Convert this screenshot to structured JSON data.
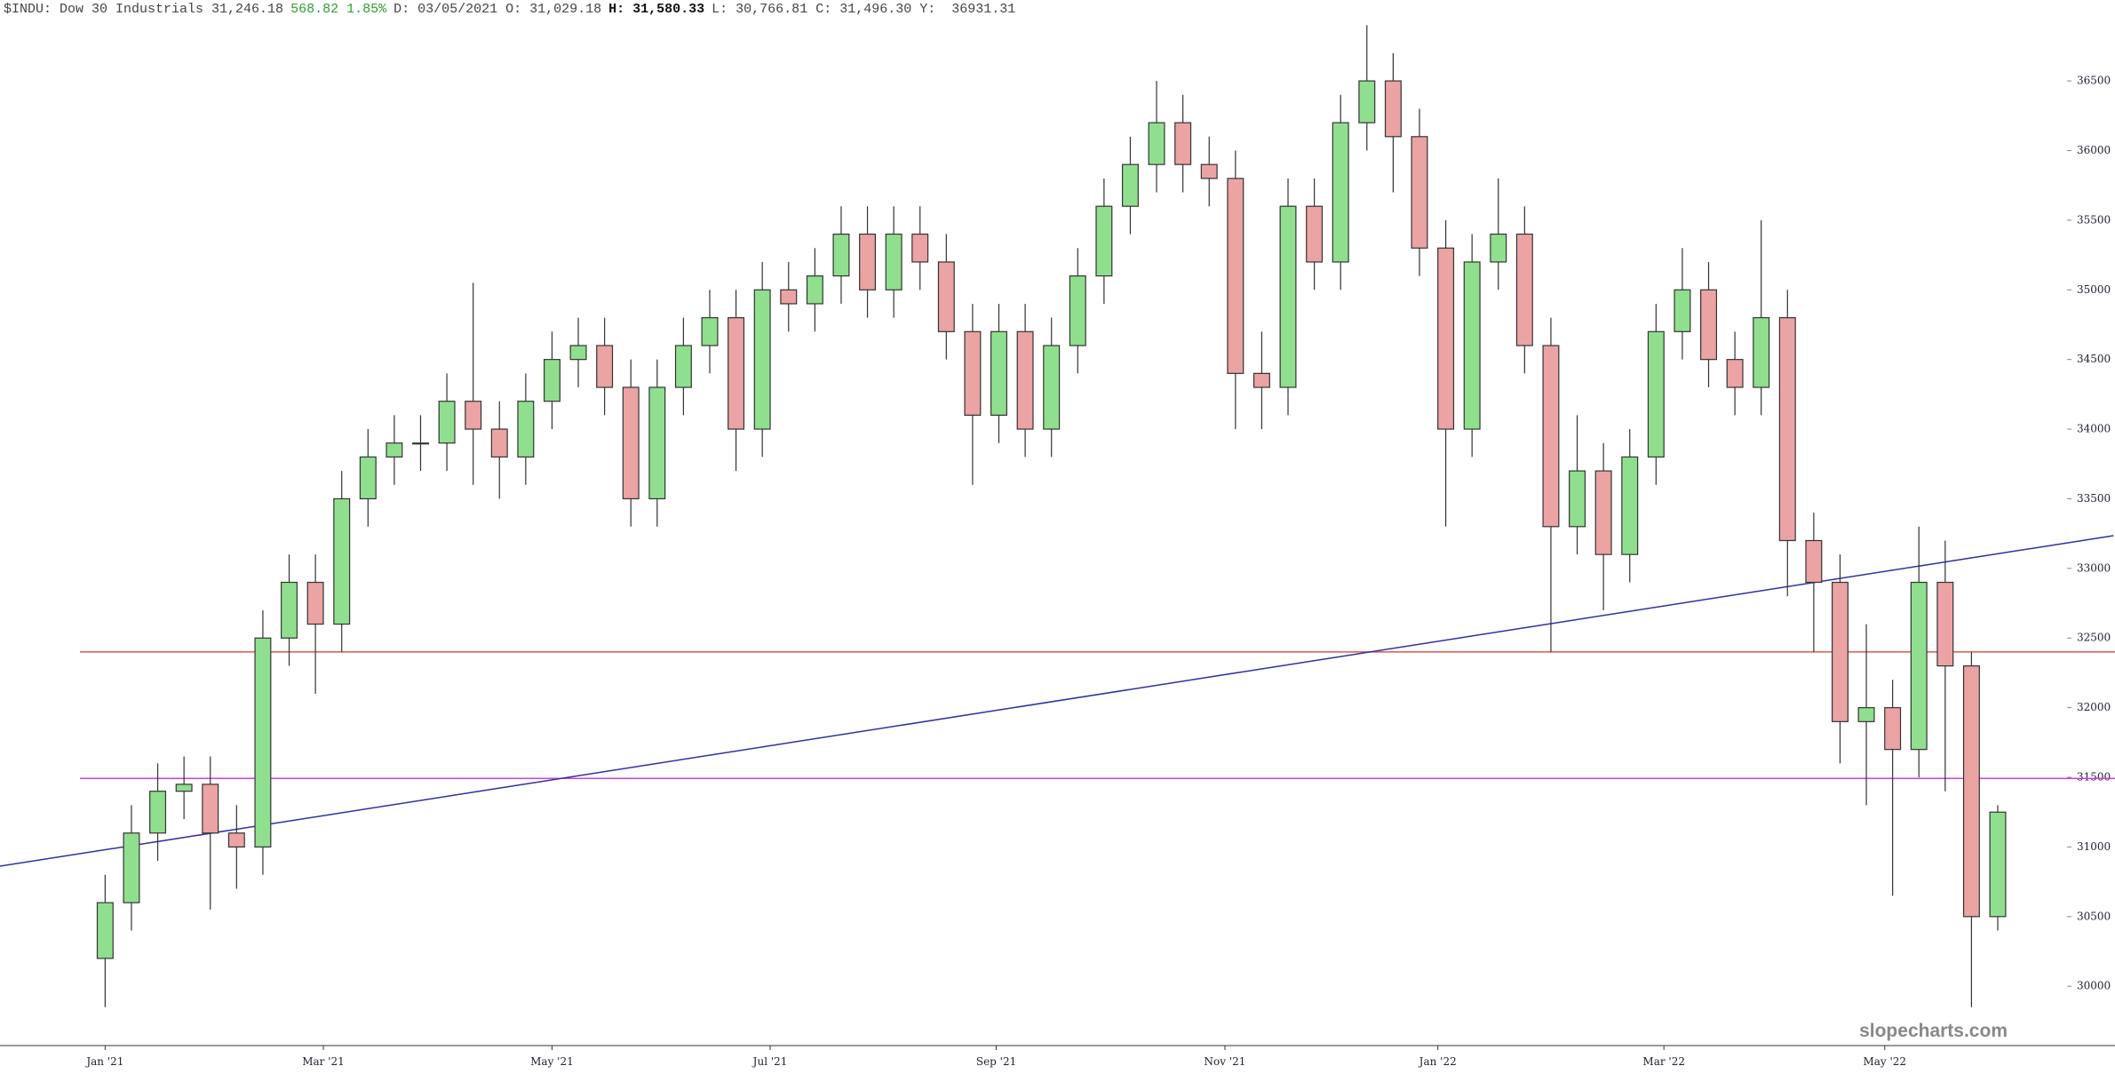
{
  "chart_data": {
    "type": "candlestick",
    "header": [
      {
        "text": "$INDU: Dow 30 Industrials 31,246.18",
        "color": "#444444",
        "bold": false
      },
      {
        "text": "568.82 1.85%",
        "color": "#2e9e2e",
        "bold": false
      },
      {
        "text": "D: 03/05/2021 O: 31,029.18",
        "color": "#444444",
        "bold": false
      },
      {
        "text": "H: 31,580.33",
        "color": "#111111",
        "bold": true
      },
      {
        "text": "L: 30,766.81 C: 31,496.30 Y:  36931.31",
        "color": "#444444",
        "bold": false
      }
    ],
    "watermark": "slopecharts.com",
    "open": [
      30200,
      30600,
      31100,
      31400,
      31450,
      31100,
      31000,
      32500,
      32900,
      32600,
      33500,
      33800,
      33900,
      33900,
      34200,
      34000,
      33800,
      34200,
      34500,
      34600,
      34300,
      33500,
      34300,
      34600,
      34800,
      34000,
      35000,
      34900,
      35100,
      35400,
      35000,
      35400,
      35200,
      34700,
      34100,
      34700,
      34000,
      34600,
      35100,
      35600,
      35900,
      36200,
      35900,
      35800,
      34400,
      34300,
      35600,
      35200,
      36200,
      36500,
      36100,
      35300,
      34000,
      35200,
      35400,
      34600,
      33300,
      33700,
      33100,
      33800,
      34700,
      35000,
      34500,
      34300,
      34800,
      33200,
      32900,
      31900,
      32000,
      31700,
      32900,
      32300,
      30500
    ],
    "high": [
      30800,
      31300,
      31600,
      31650,
      31650,
      31300,
      32700,
      33100,
      33100,
      33700,
      34000,
      34100,
      34100,
      34400,
      35050,
      34200,
      34400,
      34700,
      34800,
      34800,
      34500,
      34500,
      34800,
      35000,
      35000,
      35200,
      35200,
      35300,
      35600,
      35600,
      35600,
      35600,
      35400,
      34900,
      34900,
      34900,
      34800,
      35300,
      35800,
      36100,
      36500,
      36400,
      36100,
      36000,
      34700,
      35800,
      35800,
      36400,
      36900,
      36700,
      36300,
      35500,
      35400,
      35800,
      35600,
      34800,
      34100,
      33900,
      34000,
      34900,
      35300,
      35200,
      34700,
      35500,
      35000,
      33400,
      33100,
      32600,
      32200,
      33300,
      33200,
      32400,
      31300
    ],
    "low": [
      29850,
      30400,
      30900,
      31200,
      30550,
      30700,
      30800,
      32300,
      32100,
      32400,
      33300,
      33600,
      33700,
      33700,
      33600,
      33500,
      33600,
      34000,
      34300,
      34100,
      33300,
      33300,
      34100,
      34400,
      33700,
      33800,
      34700,
      34700,
      34900,
      34800,
      34800,
      35000,
      34500,
      33600,
      33900,
      33800,
      33800,
      34400,
      34900,
      35400,
      35700,
      35700,
      35600,
      34000,
      34000,
      34100,
      35000,
      35000,
      36000,
      35700,
      35100,
      33300,
      33800,
      35000,
      34400,
      32400,
      33100,
      32700,
      32900,
      33600,
      34500,
      34300,
      34100,
      34100,
      32800,
      32400,
      31600,
      31300,
      30650,
      31500,
      31400,
      29850,
      30400
    ],
    "close": [
      30600,
      31100,
      31400,
      31450,
      31100,
      31000,
      32500,
      32900,
      32600,
      33500,
      33800,
      33900,
      33900,
      34200,
      34000,
      33800,
      34200,
      34500,
      34600,
      34300,
      33500,
      34300,
      34600,
      34800,
      34000,
      35000,
      34900,
      35100,
      35400,
      35000,
      35400,
      35200,
      34700,
      34100,
      34700,
      34000,
      34600,
      35100,
      35600,
      35900,
      36200,
      35900,
      35800,
      34400,
      34300,
      35600,
      35200,
      36200,
      36500,
      36100,
      35300,
      34000,
      35200,
      35400,
      34600,
      33300,
      33700,
      33100,
      33800,
      34700,
      35000,
      34500,
      34300,
      34800,
      33200,
      32900,
      31900,
      32000,
      31700,
      32900,
      32300,
      30500,
      31250
    ],
    "up_color": "#8fdf8f",
    "down_color": "#eba3a3",
    "xlim": [
      -4,
      74.5
    ],
    "xticks": [
      {
        "value": 0,
        "label": "Jan '21"
      },
      {
        "value": 8.3,
        "label": "Mar '21"
      },
      {
        "value": 17.0,
        "label": "May '21"
      },
      {
        "value": 25.3,
        "label": "Jul '21"
      },
      {
        "value": 33.9,
        "label": "Sep '21"
      },
      {
        "value": 42.6,
        "label": "Nov '21"
      },
      {
        "value": 50.7,
        "label": "Jan '22"
      },
      {
        "value": 59.3,
        "label": "Mar '22"
      },
      {
        "value": 67.7,
        "label": "May '22"
      }
    ],
    "ylim": [
      29574,
      37081
    ],
    "yticks": [
      30000,
      30500,
      31000,
      31500,
      32000,
      32500,
      33000,
      33500,
      34000,
      34500,
      35000,
      35500,
      36000,
      36500
    ],
    "hlines": [
      {
        "y": 32400,
        "color": "#e05555"
      },
      {
        "y": 31492,
        "color": "#d040e0"
      }
    ],
    "trendline": {
      "x": [
        -4,
        76.4
      ],
      "y": [
        30862,
        33235
      ],
      "color": "#3030a0"
    }
  }
}
